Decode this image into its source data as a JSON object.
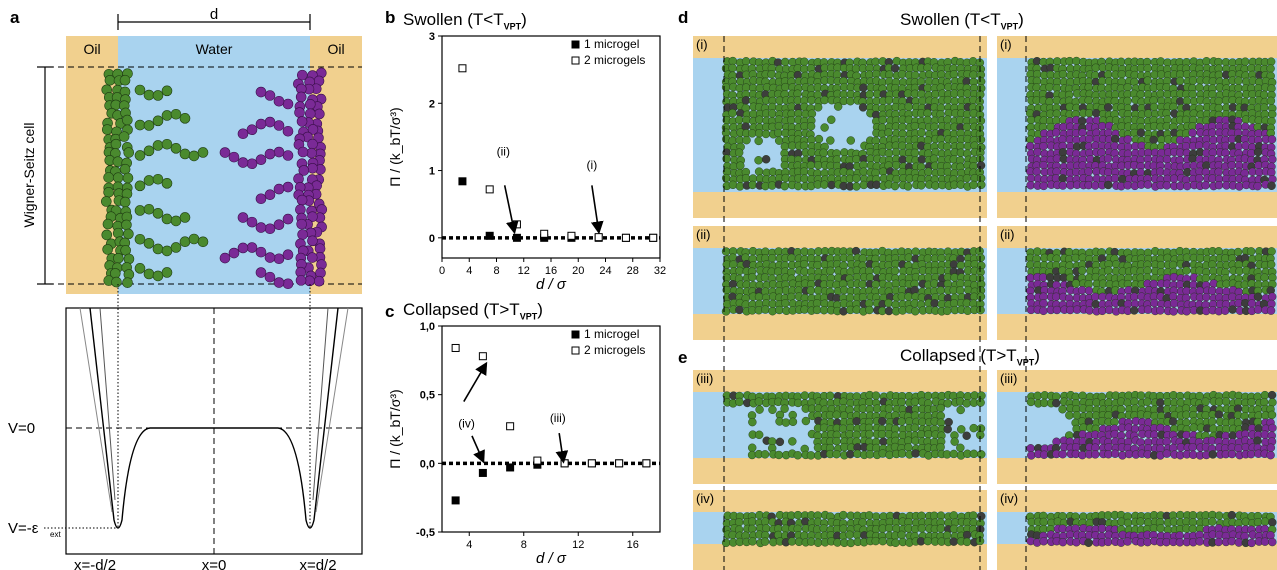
{
  "panel_a": {
    "letter": "a",
    "distance_label": "d",
    "oil_left": "Oil",
    "water": "Water",
    "oil_right": "Oil",
    "cell_label": "Wigner-Seitz cell",
    "v0_label": "V=0",
    "veps_label": "V=-ε",
    "veps_sub": "ext",
    "x_left": "x=-d/2",
    "x_mid": "x=0",
    "x_right": "x=d/2"
  },
  "panel_b": {
    "letter": "b",
    "title_main": "Swollen (T<T",
    "title_sub": "VPT",
    "title_end": ")",
    "ylabel": "Π / (k_bT/σ³)",
    "xlabel": "d / σ",
    "legend": [
      "1 microgel",
      "2 microgels"
    ],
    "arrow_labels": [
      "(ii)",
      "(i)"
    ]
  },
  "panel_c": {
    "letter": "c",
    "title_main": "Collapsed (T>T",
    "title_sub": "VPT",
    "title_end": ")",
    "ylabel": "Π / (k_bT/σ³)",
    "xlabel": "d / σ",
    "legend": [
      "1 microgel",
      "2 microgels"
    ],
    "arrow_labels": [
      "(iv)",
      "(iii)"
    ]
  },
  "panel_d": {
    "letter": "d",
    "title_main": "Swollen (T<T",
    "title_sub": "VPT",
    "title_end": ")",
    "labels": [
      "(i)",
      "(i)",
      "(ii)",
      "(ii)"
    ]
  },
  "panel_e": {
    "letter": "e",
    "title_main": "Collapsed (T>T",
    "title_sub": "VPT",
    "title_end": ")",
    "labels": [
      "(iii)",
      "(iii)",
      "(iv)",
      "(iv)"
    ]
  },
  "colors": {
    "oil": "#f1d08e",
    "water": "#a9d3ef",
    "green": "#4a8a2e",
    "purple": "#7a2a96"
  },
  "chart_data": [
    {
      "type": "scatter",
      "panel": "b",
      "xlabel": "d / σ",
      "ylabel": "Π / (k_bT/σ³)",
      "xlim": [
        0,
        32
      ],
      "ylim": [
        -0.3,
        3
      ],
      "xticks": [
        0,
        4,
        8,
        12,
        16,
        20,
        24,
        28,
        32
      ],
      "yticks": [
        0,
        1,
        2,
        3
      ],
      "series": [
        {
          "name": "1 microgel",
          "marker": "filled-square",
          "x": [
            3,
            7,
            11,
            15,
            19,
            23,
            27,
            31
          ],
          "y": [
            0.84,
            0.03,
            0.0,
            0.0,
            0.0,
            0.0,
            0.0,
            0.0
          ]
        },
        {
          "name": "2 microgels",
          "marker": "open-square",
          "x": [
            3,
            7,
            11,
            15,
            19,
            23,
            27,
            31
          ],
          "y": [
            2.52,
            0.72,
            0.2,
            0.06,
            0.03,
            0.01,
            0.0,
            0.0
          ]
        }
      ]
    },
    {
      "type": "scatter",
      "panel": "c",
      "xlabel": "d / σ",
      "ylabel": "Π / (k_bT/σ³)",
      "xlim": [
        2,
        18
      ],
      "ylim": [
        -0.5,
        1.0
      ],
      "xticks": [
        4,
        8,
        12,
        16
      ],
      "yticks": [
        "-0,5",
        "0,0",
        "0,5",
        "1,0"
      ],
      "series": [
        {
          "name": "1 microgel",
          "marker": "filled-square",
          "x": [
            3,
            5,
            7,
            9,
            11,
            13,
            15,
            17
          ],
          "y": [
            -0.27,
            -0.07,
            -0.03,
            -0.01,
            0.0,
            0.0,
            0.0,
            0.0
          ]
        },
        {
          "name": "2 microgels",
          "marker": "open-square",
          "x": [
            3,
            5,
            7,
            9,
            11,
            13,
            15,
            17
          ],
          "y": [
            0.84,
            0.78,
            0.27,
            0.02,
            0.0,
            0.0,
            0.0,
            0.0
          ]
        }
      ]
    }
  ]
}
